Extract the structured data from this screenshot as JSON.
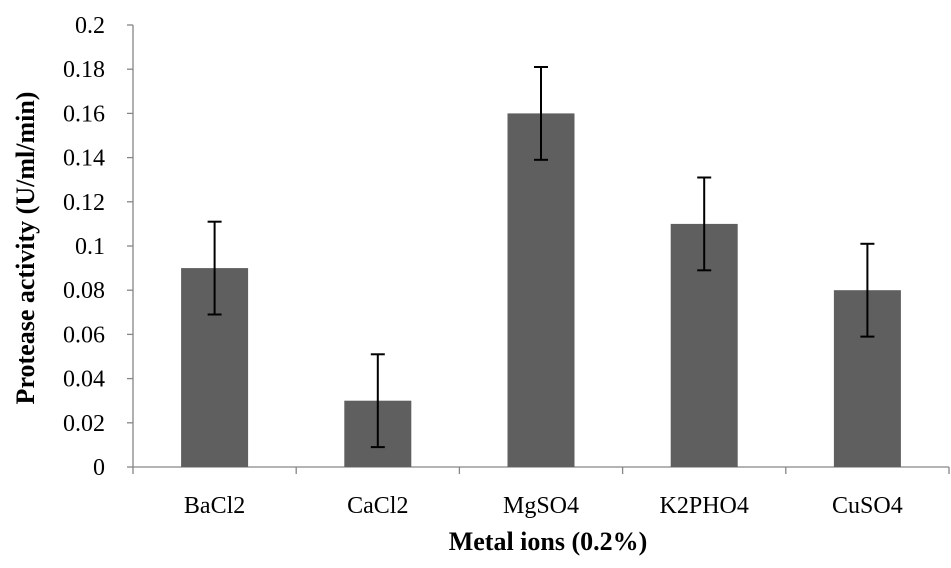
{
  "chart_data": {
    "type": "bar",
    "title": "",
    "xlabel": "Metal ions (0.2%)",
    "ylabel": "Protease activity (U/ml/min)",
    "categories": [
      "BaCl2",
      "CaCl2",
      "MgSO4",
      "K2PHO4",
      "CuSO4"
    ],
    "series": [
      {
        "values": [
          0.09,
          0.03,
          0.16,
          0.11,
          0.08
        ],
        "error": [
          0.021,
          0.021,
          0.021,
          0.021,
          0.021
        ]
      }
    ],
    "ylim": [
      0,
      0.2
    ],
    "yticks": [
      0,
      0.02,
      0.04,
      0.06,
      0.08,
      0.1,
      0.12,
      0.14,
      0.16,
      0.18,
      0.2
    ],
    "ytick_labels": [
      "0",
      "0.02",
      "0.04",
      "0.06",
      "0.08",
      "0.1",
      "0.12",
      "0.14",
      "0.16",
      "0.18",
      "0.2"
    ],
    "grid": false,
    "legend": "none",
    "bar_color": "#5f5f5f",
    "error_bar_color": "#000000",
    "axis_color": "#868686"
  }
}
